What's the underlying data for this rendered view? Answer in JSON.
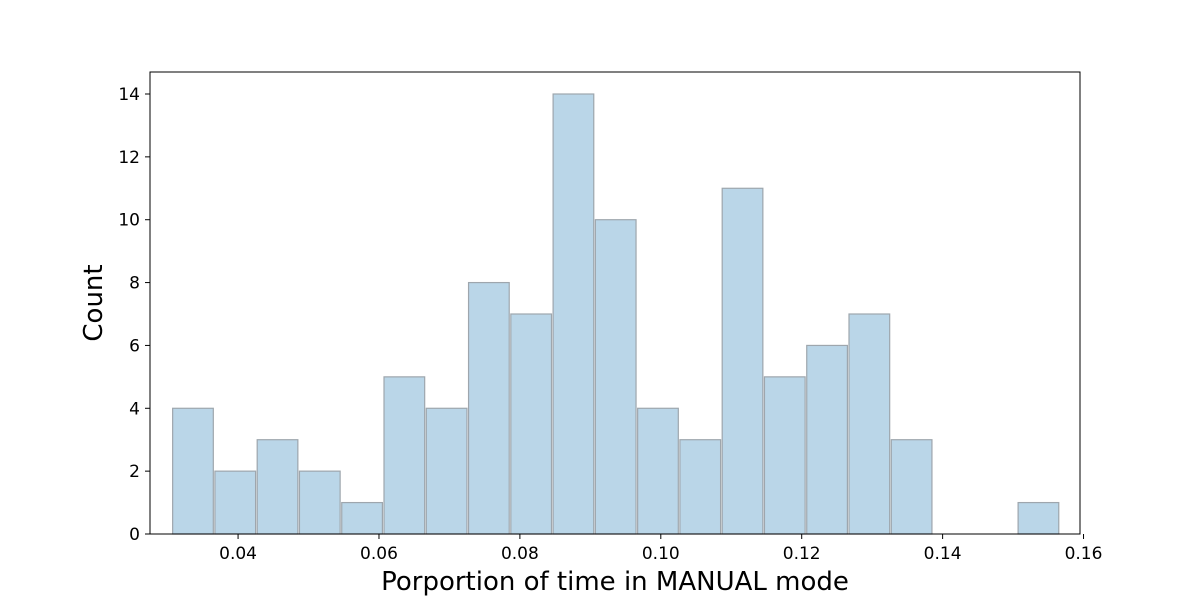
{
  "chart_data": {
    "type": "bar",
    "title": "",
    "xlabel": "Porportion of time in MANUAL mode",
    "ylabel": "Count",
    "xlim": [
      0.0275,
      0.1595
    ],
    "ylim": [
      0,
      14.7
    ],
    "grid": false,
    "bar_color": "#bad6e8",
    "edge_color": "#9ea6ad",
    "x_ticks": [
      {
        "value": 0.04,
        "label": "0.04"
      },
      {
        "value": 0.06,
        "label": "0.06"
      },
      {
        "value": 0.08,
        "label": "0.08"
      },
      {
        "value": 0.1,
        "label": "0.10"
      },
      {
        "value": 0.12,
        "label": "0.12"
      },
      {
        "value": 0.14,
        "label": "0.14"
      },
      {
        "value": 0.16,
        "label": "0.16"
      }
    ],
    "y_ticks": [
      {
        "value": 0,
        "label": "0"
      },
      {
        "value": 2,
        "label": "2"
      },
      {
        "value": 4,
        "label": "4"
      },
      {
        "value": 6,
        "label": "6"
      },
      {
        "value": 8,
        "label": "8"
      },
      {
        "value": 10,
        "label": "10"
      },
      {
        "value": 12,
        "label": "12"
      },
      {
        "value": 14,
        "label": "14"
      }
    ],
    "bins": [
      {
        "start": 0.0306,
        "end": 0.0366,
        "count": 4
      },
      {
        "start": 0.0366,
        "end": 0.0426,
        "count": 2
      },
      {
        "start": 0.0426,
        "end": 0.0486,
        "count": 3
      },
      {
        "start": 0.0486,
        "end": 0.0546,
        "count": 2
      },
      {
        "start": 0.0546,
        "end": 0.0606,
        "count": 1
      },
      {
        "start": 0.0606,
        "end": 0.0666,
        "count": 5
      },
      {
        "start": 0.0666,
        "end": 0.0726,
        "count": 4
      },
      {
        "start": 0.0726,
        "end": 0.0786,
        "count": 8
      },
      {
        "start": 0.0786,
        "end": 0.0846,
        "count": 7
      },
      {
        "start": 0.0846,
        "end": 0.0906,
        "count": 14
      },
      {
        "start": 0.0906,
        "end": 0.0966,
        "count": 10
      },
      {
        "start": 0.0966,
        "end": 0.1026,
        "count": 4
      },
      {
        "start": 0.1026,
        "end": 0.1086,
        "count": 3
      },
      {
        "start": 0.1086,
        "end": 0.1146,
        "count": 11
      },
      {
        "start": 0.1146,
        "end": 0.1206,
        "count": 5
      },
      {
        "start": 0.1206,
        "end": 0.1266,
        "count": 6
      },
      {
        "start": 0.1266,
        "end": 0.1326,
        "count": 7
      },
      {
        "start": 0.1326,
        "end": 0.1386,
        "count": 3
      },
      {
        "start": 0.1386,
        "end": 0.1446,
        "count": 0
      },
      {
        "start": 0.1446,
        "end": 0.1506,
        "count": 0
      },
      {
        "start": 0.1506,
        "end": 0.1566,
        "count": 1
      }
    ]
  }
}
